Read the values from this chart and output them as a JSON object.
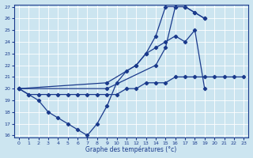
{
  "xlabel": "Graphe des températures (°c)",
  "bg_color": "#cce5f0",
  "line_color": "#1a3a8c",
  "grid_color": "#ffffff",
  "ylim": [
    16,
    27
  ],
  "xlim": [
    -0.5,
    23.5
  ],
  "yticks": [
    16,
    17,
    18,
    19,
    20,
    21,
    22,
    23,
    24,
    25,
    26,
    27
  ],
  "xticks": [
    0,
    1,
    2,
    3,
    4,
    5,
    6,
    7,
    8,
    9,
    10,
    11,
    12,
    13,
    14,
    15,
    16,
    17,
    18,
    19,
    20,
    21,
    22,
    23
  ],
  "series": [
    {
      "x": [
        0,
        1,
        2,
        3,
        4,
        5,
        6,
        7,
        8,
        9,
        10,
        11,
        12,
        13,
        14,
        15,
        16,
        17,
        18,
        19,
        20,
        21,
        22,
        23
      ],
      "y": [
        20,
        19.5,
        19,
        18,
        17.5,
        17,
        16.5,
        16,
        17,
        18.5,
        20.5,
        21.5,
        22,
        23,
        24.5,
        27,
        27,
        27,
        26.5,
        26,
        null,
        null,
        null,
        null
      ]
    },
    {
      "x": [
        0,
        9,
        14,
        15,
        16,
        17,
        18,
        19
      ],
      "y": [
        20,
        20,
        22,
        23.5,
        27,
        27,
        26.5,
        26
      ]
    },
    {
      "x": [
        0,
        9,
        12,
        13,
        14,
        15,
        16,
        17,
        18,
        19,
        20,
        21,
        22,
        23
      ],
      "y": [
        20,
        20.5,
        22,
        23,
        23.5,
        24,
        24.5,
        24,
        25,
        20,
        null,
        null,
        null,
        null
      ]
    },
    {
      "x": [
        0,
        1,
        2,
        3,
        4,
        5,
        6,
        7,
        8,
        9,
        10,
        11,
        12,
        13,
        14,
        15,
        16,
        17,
        18,
        19,
        20,
        21,
        22,
        23
      ],
      "y": [
        20,
        19.5,
        19.5,
        19.5,
        19.5,
        19.5,
        19.5,
        19.5,
        19.5,
        19.5,
        19.5,
        20,
        20,
        20.5,
        20.5,
        20.5,
        21,
        21,
        21,
        21,
        21,
        21,
        21,
        21
      ]
    }
  ]
}
